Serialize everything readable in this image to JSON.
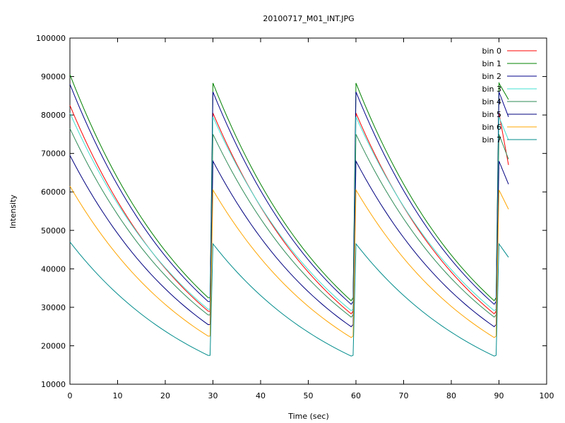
{
  "chart_data": {
    "type": "line",
    "title": "20100717_M01_INT.JPG",
    "xlabel": "Time (sec)",
    "ylabel": "Intensity",
    "xlim": [
      0,
      100
    ],
    "ylim": [
      10000,
      100000
    ],
    "xticks": [
      "0",
      "10",
      "20",
      "30",
      "40",
      "50",
      "60",
      "70",
      "80",
      "90",
      "100"
    ],
    "yticks": [
      "10000",
      "20000",
      "30000",
      "40000",
      "50000",
      "60000",
      "70000",
      "80000",
      "90000",
      "100000"
    ],
    "grid": false,
    "legend_position": "top-right",
    "x": [
      0,
      1,
      2,
      3,
      4,
      5,
      6,
      7,
      8,
      9,
      10,
      11,
      12,
      13,
      14,
      15,
      16,
      17,
      18,
      19,
      20,
      21,
      22,
      23,
      24,
      25,
      26,
      27,
      28,
      29,
      30,
      31,
      32,
      33,
      34,
      35,
      36,
      37,
      38,
      39,
      40,
      41,
      42,
      43,
      44,
      45,
      46,
      47,
      48,
      49,
      50,
      51,
      52,
      53,
      54,
      55,
      56,
      57,
      58,
      59,
      60,
      61,
      62,
      63,
      64,
      65,
      66,
      67,
      68,
      69,
      70,
      71,
      72,
      73,
      74,
      75,
      76,
      77,
      78,
      79,
      80,
      81,
      82,
      83,
      84,
      85,
      86,
      87,
      88,
      89,
      90,
      91,
      92
    ],
    "series": [
      {
        "name": "bin 0",
        "color": "#ff0000",
        "start": 82500,
        "end": 29000,
        "peak_mid": 80500,
        "end_tail": 67000
      },
      {
        "name": "bin 1",
        "color": "#008000",
        "start": 90500,
        "end": 32500,
        "peak_mid": 88300,
        "end_tail": 84000
      },
      {
        "name": "bin 2",
        "color": "#00008b",
        "start": 88000,
        "end": 31500,
        "peak_mid": 86000,
        "end_tail": 79500
      },
      {
        "name": "bin 3",
        "color": "#40e0d0",
        "start": 80500,
        "end": 29500,
        "peak_mid": 79500,
        "end_tail": 73500
      },
      {
        "name": "bin 4",
        "color": "#2e8b57",
        "start": 76500,
        "end": 28000,
        "peak_mid": 75000,
        "end_tail": 68500
      },
      {
        "name": "bin 5",
        "color": "#000080",
        "start": 69500,
        "end": 25500,
        "peak_mid": 68000,
        "end_tail": 62000
      },
      {
        "name": "bin 6",
        "color": "#ffa500",
        "start": 61500,
        "end": 22500,
        "peak_mid": 60500,
        "end_tail": 55500
      },
      {
        "name": "bin 7",
        "color": "#008b8b",
        "start": 47000,
        "end": 17500,
        "peak_mid": 46500,
        "end_tail": 43000
      }
    ]
  }
}
